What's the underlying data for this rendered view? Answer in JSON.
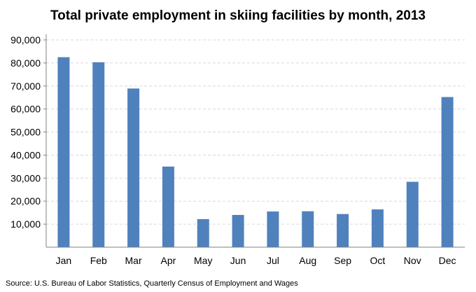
{
  "chart_data": {
    "type": "bar",
    "title": "Total private employment in skiing facilities by month, 2013",
    "xlabel": "",
    "ylabel": "",
    "categories": [
      "Jan",
      "Feb",
      "Mar",
      "Apr",
      "May",
      "Jun",
      "Jul",
      "Aug",
      "Sep",
      "Oct",
      "Nov",
      "Dec"
    ],
    "values": [
      82500,
      80300,
      68900,
      35000,
      12200,
      14000,
      15500,
      15600,
      14400,
      16400,
      28400,
      65200
    ],
    "ylim": [
      0,
      90000
    ],
    "yticks": [
      "10,000",
      "20,000",
      "30,000",
      "40,000",
      "50,000",
      "60,000",
      "70,000",
      "80,000",
      "90,000"
    ],
    "ytick_values": [
      10000,
      20000,
      30000,
      40000,
      50000,
      60000,
      70000,
      80000,
      90000
    ],
    "grid": true,
    "bar_color": "#4f81bd",
    "source": "Source: U.S. Bureau of Labor Statistics, Quarterly Census of Employment and Wages"
  }
}
